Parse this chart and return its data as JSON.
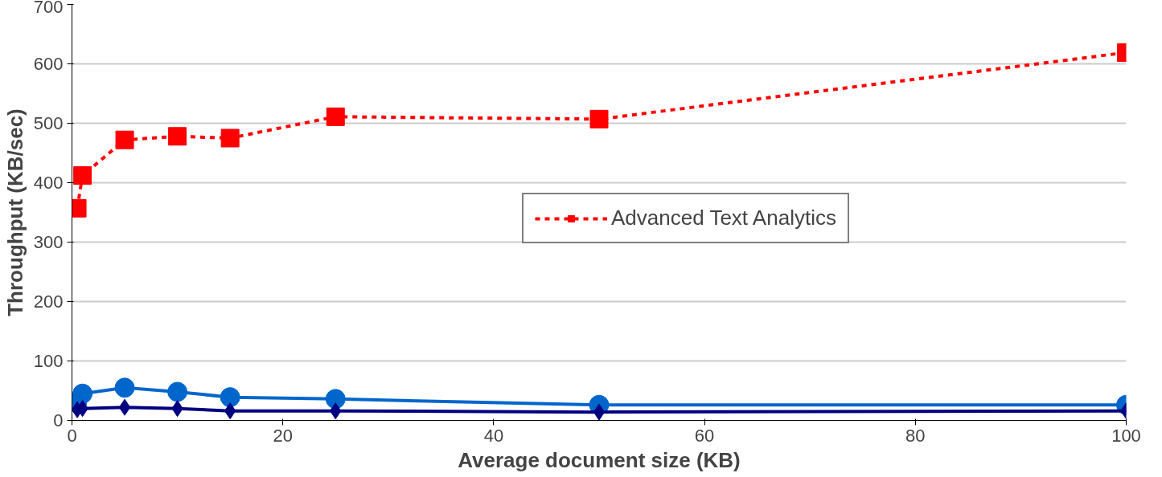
{
  "chart_data": {
    "type": "line",
    "xlabel": "Average document size (KB)",
    "ylabel": "Throughput (KB/sec)",
    "x": [
      0.5,
      1,
      5,
      10,
      15,
      25,
      50,
      100
    ],
    "xlim": [
      0,
      100
    ],
    "xticks": [
      0,
      20,
      40,
      60,
      80,
      100
    ],
    "ylim": [
      0,
      700
    ],
    "yticks": [
      0,
      100,
      200,
      300,
      400,
      500,
      600,
      700
    ],
    "grid": "y",
    "legend": "right",
    "series": [
      {
        "color": "#000080",
        "marker": "diamond",
        "line_style": "solid",
        "values": [
          18,
          20,
          22,
          20,
          16,
          16,
          14,
          16
        ]
      },
      {
        "color": "#0066cc",
        "marker": "circle",
        "line_style": "solid",
        "values": [
          32,
          45,
          55,
          48,
          39,
          36,
          26,
          26
        ]
      },
      {
        "name": "Advanced Text Analytics",
        "color": "#ff0000",
        "marker": "square",
        "line_style": "dashed",
        "values": [
          357,
          412,
          472,
          478,
          475,
          511,
          507,
          619
        ]
      }
    ]
  }
}
